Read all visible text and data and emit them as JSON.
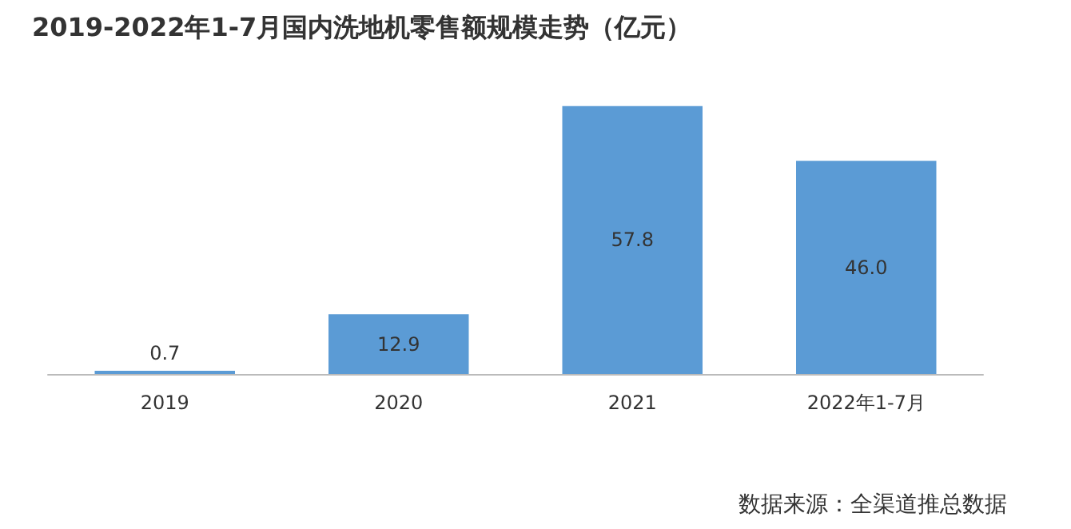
{
  "chart_data": {
    "type": "bar",
    "title": "2019-2022年1-7月国内洗地机零售额规模走势（亿元）",
    "categories": [
      "2019",
      "2020",
      "2021",
      "2022年1-7月"
    ],
    "values": [
      0.7,
      12.9,
      57.8,
      46.0
    ],
    "color": "#5b9bd5",
    "value_labels": [
      "0.7",
      "12.9",
      "57.8",
      "46.0"
    ],
    "annotations": [
      "数据来源：全渠道推总数据"
    ]
  }
}
